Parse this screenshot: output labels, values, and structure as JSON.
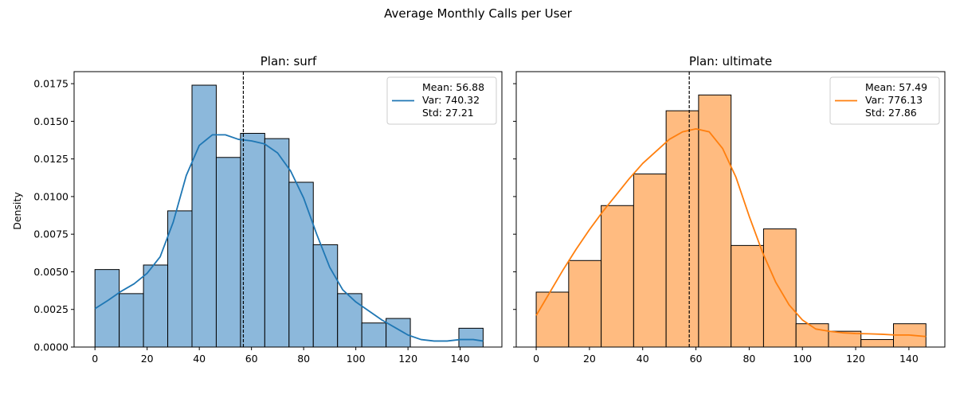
{
  "figure": {
    "title": "Average Monthly Calls per User",
    "ylabel": "Density"
  },
  "chart_data": [
    {
      "type": "bar",
      "subtype": "histogram",
      "title": "Plan: surf",
      "xlabel": "",
      "ylabel": "Density",
      "xlim": [
        -8,
        156
      ],
      "ylim": [
        0,
        0.0183
      ],
      "xticks": [
        0,
        20,
        40,
        60,
        80,
        100,
        120,
        140
      ],
      "yticks": [
        "0.0000",
        "0.0025",
        "0.0050",
        "0.0075",
        "0.0100",
        "0.0125",
        "0.0150",
        "0.0175"
      ],
      "ytick_values": [
        0,
        0.0025,
        0.005,
        0.0075,
        0.01,
        0.0125,
        0.015,
        0.0175
      ],
      "color": "#1f77b4",
      "bar_fill": "#8cb8db",
      "bins": [
        {
          "x0": 0,
          "x1": 9.3,
          "density": 0.00515
        },
        {
          "x0": 9.3,
          "x1": 18.6,
          "density": 0.00355
        },
        {
          "x0": 18.6,
          "x1": 27.9,
          "density": 0.00545
        },
        {
          "x0": 27.9,
          "x1": 37.2,
          "density": 0.00905
        },
        {
          "x0": 37.2,
          "x1": 46.5,
          "density": 0.0174
        },
        {
          "x0": 46.5,
          "x1": 55.8,
          "density": 0.0126
        },
        {
          "x0": 55.8,
          "x1": 65.1,
          "density": 0.0142
        },
        {
          "x0": 65.1,
          "x1": 74.4,
          "density": 0.01385
        },
        {
          "x0": 74.4,
          "x1": 83.7,
          "density": 0.01095
        },
        {
          "x0": 83.7,
          "x1": 93.0,
          "density": 0.0068
        },
        {
          "x0": 93.0,
          "x1": 102.3,
          "density": 0.00355
        },
        {
          "x0": 102.3,
          "x1": 111.6,
          "density": 0.0016
        },
        {
          "x0": 111.6,
          "x1": 120.9,
          "density": 0.0019
        },
        {
          "x0": 120.9,
          "x1": 130.2,
          "density": 0
        },
        {
          "x0": 130.2,
          "x1": 139.5,
          "density": 0
        },
        {
          "x0": 139.5,
          "x1": 148.8,
          "density": 0.00125
        }
      ],
      "kde": {
        "x": [
          0,
          5,
          10,
          15,
          20,
          25,
          30,
          35,
          40,
          45,
          50,
          55,
          60,
          65,
          70,
          75,
          80,
          85,
          90,
          95,
          100,
          105,
          110,
          115,
          120,
          125,
          130,
          135,
          140,
          145,
          148.8
        ],
        "y": [
          0.00255,
          0.0031,
          0.0037,
          0.0042,
          0.0049,
          0.006,
          0.0083,
          0.0114,
          0.0134,
          0.0141,
          0.0141,
          0.0138,
          0.0137,
          0.0135,
          0.0129,
          0.0117,
          0.0099,
          0.0075,
          0.0053,
          0.0038,
          0.003,
          0.0024,
          0.0018,
          0.0013,
          0.0008,
          0.0005,
          0.0004,
          0.0004,
          0.0005,
          0.0005,
          0.0004
        ]
      },
      "mean_line": 56.88,
      "legend": {
        "position": "top-right",
        "lines": [
          "Mean: 56.88",
          "Var: 740.32",
          "Std: 27.21"
        ]
      }
    },
    {
      "type": "bar",
      "subtype": "histogram",
      "title": "Plan: ultimate",
      "xlabel": "",
      "ylabel": "",
      "xlim": [
        -7.5,
        153.5
      ],
      "ylim": [
        0,
        0.0183
      ],
      "xticks": [
        0,
        20,
        40,
        60,
        80,
        100,
        120,
        140
      ],
      "color": "#ff7f0e",
      "bar_fill": "#ffbb80",
      "bins": [
        {
          "x0": 0,
          "x1": 12.2,
          "density": 0.00365
        },
        {
          "x0": 12.2,
          "x1": 24.4,
          "density": 0.00575
        },
        {
          "x0": 24.4,
          "x1": 36.6,
          "density": 0.0094
        },
        {
          "x0": 36.6,
          "x1": 48.8,
          "density": 0.0115
        },
        {
          "x0": 48.8,
          "x1": 61.0,
          "density": 0.0157
        },
        {
          "x0": 61.0,
          "x1": 73.2,
          "density": 0.01675
        },
        {
          "x0": 73.2,
          "x1": 85.4,
          "density": 0.00675
        },
        {
          "x0": 85.4,
          "x1": 97.6,
          "density": 0.00785
        },
        {
          "x0": 97.6,
          "x1": 109.8,
          "density": 0.00155
        },
        {
          "x0": 109.8,
          "x1": 122.0,
          "density": 0.00105
        },
        {
          "x0": 122.0,
          "x1": 134.2,
          "density": 0.0005
        },
        {
          "x0": 134.2,
          "x1": 146.4,
          "density": 0.00155
        }
      ],
      "kde": {
        "x": [
          0,
          5,
          10,
          15,
          20,
          25,
          30,
          35,
          40,
          45,
          50,
          55,
          60,
          65,
          70,
          75,
          80,
          85,
          90,
          95,
          100,
          105,
          110,
          115,
          120,
          125,
          130,
          135,
          140,
          146.4
        ],
        "y": [
          0.0021,
          0.0036,
          0.0051,
          0.0065,
          0.0078,
          0.009,
          0.0101,
          0.0112,
          0.0122,
          0.013,
          0.0138,
          0.0143,
          0.0145,
          0.0143,
          0.0132,
          0.0113,
          0.0087,
          0.0063,
          0.0043,
          0.0028,
          0.0018,
          0.0012,
          0.00105,
          0.00095,
          0.0009,
          0.00088,
          0.00085,
          0.0008,
          0.0008,
          0.0007
        ]
      },
      "mean_line": 57.49,
      "legend": {
        "position": "top-right",
        "lines": [
          "Mean: 57.49",
          "Var: 776.13",
          "Std: 27.86"
        ]
      }
    }
  ]
}
